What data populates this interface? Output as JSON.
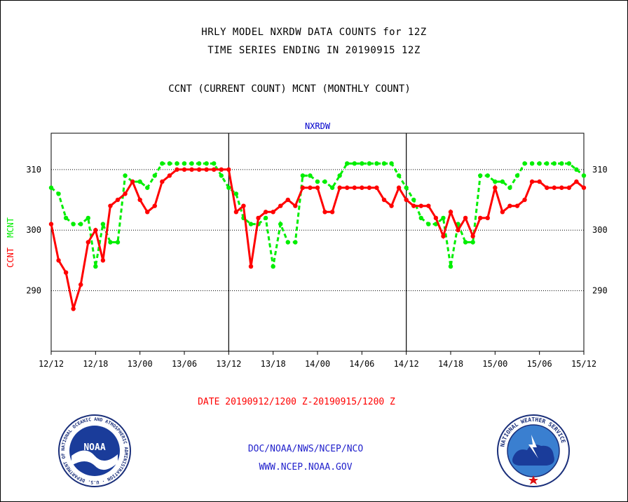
{
  "header": {
    "title_line1": "HRLY MODEL NXRDW DATA COUNTS for 12Z",
    "title_line2": "TIME SERIES ENDING IN 20190915 12Z",
    "subtitle": "CCNT (CURRENT COUNT) MCNT (MONTHLY COUNT)"
  },
  "chart_data": {
    "type": "line",
    "title": "NXRDW",
    "ylim": [
      280,
      316
    ],
    "yticks": [
      290,
      300,
      310
    ],
    "ylabel_left": [
      "CCNT",
      "MCNT"
    ],
    "xtick_labels": [
      "12/12",
      "12/18",
      "13/00",
      "13/06",
      "13/12",
      "13/18",
      "14/00",
      "14/06",
      "14/12",
      "14/18",
      "15/00",
      "15/06",
      "15/12"
    ],
    "x_start_label": "12/12",
    "x_end_label": "15/12",
    "x_units": "hours since 12/12 12Z",
    "grid": true,
    "series": [
      {
        "name": "CCNT",
        "color": "#ff0000",
        "x": [
          0,
          1,
          2,
          3,
          4,
          5,
          6,
          7,
          8,
          9,
          10,
          11,
          12,
          13,
          14,
          15,
          16,
          17,
          18,
          19,
          20,
          21,
          22,
          23,
          24,
          25,
          26,
          27,
          28,
          29,
          30,
          31,
          32,
          33,
          34,
          35,
          36,
          37,
          38,
          39,
          40,
          41,
          42,
          43,
          44,
          45,
          46,
          47,
          48,
          49,
          50,
          51,
          52,
          53,
          54,
          55,
          56,
          57,
          58,
          59,
          60,
          61,
          62,
          63,
          64,
          65,
          66,
          67,
          68,
          69,
          70,
          71,
          72
        ],
        "values": [
          301,
          295,
          293,
          287,
          291,
          298,
          300,
          295,
          304,
          305,
          306,
          308,
          305,
          303,
          304,
          308,
          309,
          310,
          310,
          310,
          310,
          310,
          310,
          310,
          310,
          303,
          304,
          294,
          302,
          303,
          303,
          304,
          305,
          304,
          307,
          307,
          307,
          303,
          303,
          307,
          307,
          307,
          307,
          307,
          307,
          305,
          304,
          307,
          305,
          304,
          304,
          304,
          302,
          299,
          303,
          300,
          302,
          299,
          302,
          302,
          307,
          303,
          304,
          304,
          305,
          308,
          308,
          307,
          307,
          307,
          307,
          308,
          307
        ]
      },
      {
        "name": "MCNT",
        "color": "#00ee00",
        "x": [
          0,
          1,
          2,
          3,
          4,
          5,
          6,
          7,
          8,
          9,
          10,
          11,
          12,
          13,
          14,
          15,
          16,
          17,
          18,
          19,
          20,
          21,
          22,
          23,
          24,
          25,
          26,
          27,
          28,
          29,
          30,
          31,
          32,
          33,
          34,
          35,
          36,
          37,
          38,
          39,
          40,
          41,
          42,
          43,
          44,
          45,
          46,
          47,
          48,
          49,
          50,
          51,
          52,
          53,
          54,
          55,
          56,
          57,
          58,
          59,
          60,
          61,
          62,
          63,
          64,
          65,
          66,
          67,
          68,
          69,
          70,
          71,
          72
        ],
        "values": [
          307,
          306,
          302,
          301,
          301,
          302,
          294,
          301,
          298,
          298,
          309,
          308,
          308,
          307,
          309,
          311,
          311,
          311,
          311,
          311,
          311,
          311,
          311,
          309,
          307,
          306,
          302,
          301,
          301,
          302,
          294,
          301,
          298,
          298,
          309,
          309,
          308,
          308,
          307,
          309,
          311,
          311,
          311,
          311,
          311,
          311,
          311,
          309,
          307,
          305,
          302,
          301,
          301,
          302,
          294,
          301,
          298,
          298,
          309,
          309,
          308,
          308,
          307,
          309,
          311,
          311,
          311,
          311,
          311,
          311,
          311,
          310,
          309
        ]
      }
    ]
  },
  "footer": {
    "date_range": "DATE 20190912/1200 Z-20190915/1200 Z",
    "org_path": "DOC/NOAA/NWS/NCEP/NCO",
    "website": "WWW.NCEP.NOAA.GOV"
  },
  "logos": {
    "noaa_text": "NOAA",
    "noaa_ring": "NATIONAL OCEANIC AND ATMOSPHERIC ADMINISTRATION · U.S. DEPARTMENT OF COMMERCE",
    "nws_ring": "NATIONAL WEATHER SERVICE"
  },
  "colors": {
    "ccnt": "#ff0000",
    "mcnt": "#00ee00",
    "title_blue": "#0000cc",
    "date_red": "#ff0000",
    "footer_blue": "#2222cc"
  }
}
